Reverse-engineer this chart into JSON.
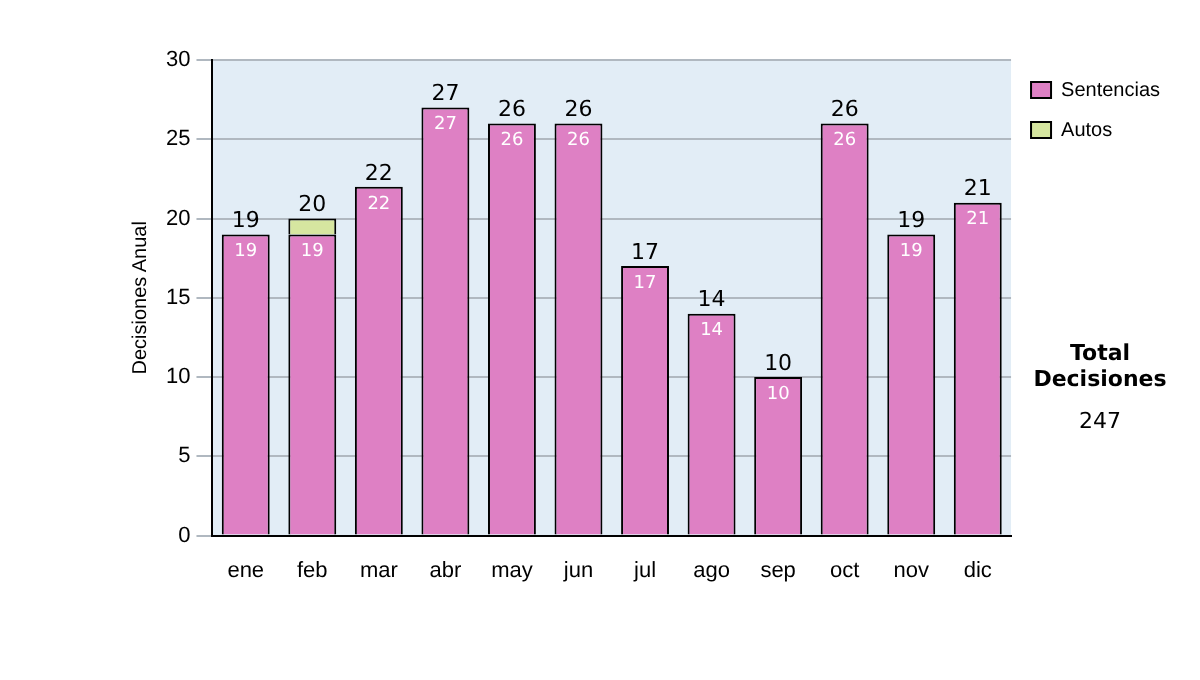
{
  "chart_data": {
    "type": "bar",
    "stacked": true,
    "ylabel": "Decisiones Anual",
    "categories": [
      "ene",
      "feb",
      "mar",
      "abr",
      "may",
      "jun",
      "jul",
      "ago",
      "sep",
      "oct",
      "nov",
      "dic"
    ],
    "series": [
      {
        "name": "Sentencias",
        "color": "#de80c4",
        "values": [
          19,
          19,
          22,
          27,
          26,
          26,
          17,
          14,
          10,
          26,
          19,
          21
        ],
        "value_labels": [
          "19",
          "19",
          "22",
          "27",
          "26",
          "26",
          "17",
          "14",
          "10",
          "26",
          "19",
          "21"
        ]
      },
      {
        "name": "Autos",
        "color": "#d6e6a0",
        "values": [
          0,
          1,
          0,
          0,
          0,
          0,
          0,
          0,
          0,
          0,
          0,
          0
        ]
      }
    ],
    "totals": [
      "19",
      "20",
      "22",
      "27",
      "26",
      "26",
      "17",
      "14",
      "10",
      "26",
      "19",
      "21"
    ],
    "ylim": [
      0,
      30
    ],
    "yticks": [
      0,
      5,
      10,
      15,
      20,
      25,
      30
    ],
    "grid": "y",
    "legend": "right",
    "annotations": [
      "Total Decisiones",
      "247"
    ]
  }
}
